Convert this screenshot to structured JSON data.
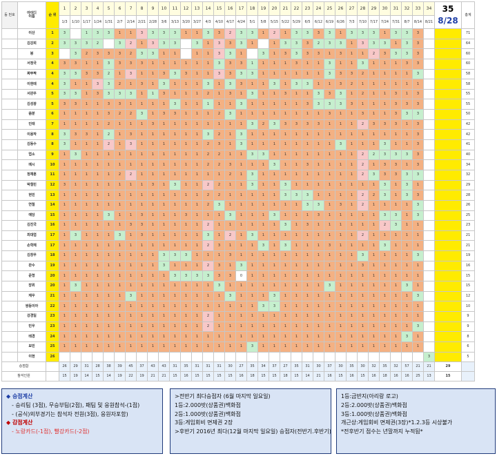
{
  "header": {
    "no_label": "등\n번호",
    "id_label": "아이디",
    "name_label": "이름",
    "rank_label": "순\n위",
    "big_number": "35",
    "big_date": "8/28",
    "total_label": "총계"
  },
  "weeks": [
    {
      "n": "1",
      "d": "1/3"
    },
    {
      "n": "2",
      "d": "1/10"
    },
    {
      "n": "3",
      "d": "1/17"
    },
    {
      "n": "4",
      "d": "1/24"
    },
    {
      "n": "5",
      "d": "1/31"
    },
    {
      "n": "6",
      "d": "2/7"
    },
    {
      "n": "7",
      "d": "2/14"
    },
    {
      "n": "8",
      "d": "2/21"
    },
    {
      "n": "9",
      "d": "2/28"
    },
    {
      "n": "10",
      "d": "3/6"
    },
    {
      "n": "11",
      "d": "3/13"
    },
    {
      "n": "12",
      "d": "3/20"
    },
    {
      "n": "13",
      "d": "3/27"
    },
    {
      "n": "14",
      "d": "4/3"
    },
    {
      "n": "15",
      "d": "4/10"
    },
    {
      "n": "16",
      "d": "4/17"
    },
    {
      "n": "17",
      "d": "4/24"
    },
    {
      "n": "18",
      "d": "5/1"
    },
    {
      "n": "19",
      "d": "5/8"
    },
    {
      "n": "20",
      "d": "5/15"
    },
    {
      "n": "21",
      "d": "5/22"
    },
    {
      "n": "22",
      "d": "5/29"
    },
    {
      "n": "23",
      "d": "6/5"
    },
    {
      "n": "24",
      "d": "6/12"
    },
    {
      "n": "25",
      "d": "6/19"
    },
    {
      "n": "26",
      "d": "6/26"
    },
    {
      "n": "27",
      "d": "7/3"
    },
    {
      "n": "28",
      "d": "7/10"
    },
    {
      "n": "29",
      "d": "7/17"
    },
    {
      "n": "30",
      "d": "7/24"
    },
    {
      "n": "31",
      "d": "7/31"
    },
    {
      "n": "32",
      "d": "8/7"
    },
    {
      "n": "33",
      "d": "8/14"
    },
    {
      "n": "34",
      "d": "8/21"
    }
  ],
  "colors": {
    "green": "#c6efce",
    "orange": "#f4b183",
    "pink": "#f8c8c8",
    "yellow": "#ffeb00",
    "blue": "#1f3fa6"
  },
  "players": [
    {
      "name": "이산",
      "rank": "1",
      "total": "71",
      "cells": "g3 _ g1 g3 g3 o1 o1 p3 g3 g3 g3 o1 o1 g3 o3 p2 g3 g3 o1 p2 o1 g3 g3 o3 g3 o1 g3 g3 g3 o1 g3 g3 o3 _"
    },
    {
      "name": "김강희",
      "rank": "2",
      "total": "64",
      "cells": "g3 g3 g3 g2 _ g3 p2 o1 p3 g3 g3 _ g3 o1 p3 o3 g3 o1 _ o1 g3 g3 o3 g2 g3 g3 o1 p3 g3 g3 o1 g3 o3 _"
    },
    {
      "name": "봉",
      "rank": "3",
      "total": "60",
      "cells": "_ g3 o2 o3 o3 o3 o2 g3 g3 o1 o1 _ o1 o1 p3 g3 o1 _ g3 o1 o3 g3 o3 o3 o1 o3 o1 o1 p2 o3 g3 g3 o3 _"
    },
    {
      "name": "서정국",
      "rank": "4",
      "total": "60",
      "cells": "o3 o3 o1 o1 g3 o3 o3 o3 o1 o1 o1 o1 o1 o1 g3 o3 o3 g1 o1 o1 o1 o3 o1 o1 g3 o1 o1 g3 o1 o1 o1 o3 o3 _"
    },
    {
      "name": "짜뚜짝",
      "rank": "4",
      "total": "58",
      "cells": "g3 g3 o3 o3 g2 o1 p3 o1 o1 o3 g3 o3 o1 o1 p3 o3 g3 g3 o1 o1 o1 o1 o1 o1 g3 o3 o3 o2 o1 o1 o1 o1 g3 _"
    },
    {
      "name": "이현태",
      "rank": "4",
      "total": "58",
      "cells": "g3 o1 o1 p3 g3 o2 o1 o3 o1 g3 o1 o1 o1 g3 o1 g3 o3 o1 o1 g3 o1 g3 g3 o1 o1 o3 o2 o1 o1 o1 o1 o1 o1 _"
    },
    {
      "name": "서완우",
      "rank": "5",
      "total": "55",
      "cells": "g3 g3 o1 o3 g3 g3 g3 o1 g1 o3 o1 o1 o1 o2 o1 o3 o1 g3 o1 o1 o3 o1 o1 g3 o3 g3 o1 o2 o1 o1 o3 o1 o3 _"
    },
    {
      "name": "김성광",
      "rank": "5",
      "total": "55",
      "cells": "o3 o3 o1 o1 o3 o3 o1 o1 o1 o1 g3 o1 o1 g1 o1 o1 g3 o1 o1 o1 o1 o1 o3 g3 g3 g3 o3 o1 o1 o1 o3 o3 o3 _"
    },
    {
      "name": "씀분",
      "rank": "6",
      "total": "50",
      "cells": "o1 o1 o1 o1 o3 o2 o2 g3 o1 o3 o3 o1 o1 o1 o2 g3 o1 o1 o1 o1 o1 o1 o1 o1 o3 o1 o1 o3 o1 o1 o3 g3 g3 _"
    },
    {
      "name": "인태",
      "rank": "7",
      "total": "42",
      "cells": "o1 o1 o1 o1 o2 o1 o1 o1 o3 o1 o1 o1 o1 o1 o1 o1 o1 g3 o2 g3 o3 o3 o3 o3 o1 o1 o1 p2 o3 o3 o3 o1 o3 _"
    },
    {
      "name": "이용작",
      "rank": "8",
      "total": "42",
      "cells": "g3 o3 o3 o1 g2 o1 o3 o1 o1 o1 o1 o1 o1 g3 o2 o1 g3 o1 o1 o1 o1 o1 o1 o1 o1 o1 o1 o1 o1 o1 o1 o1 o3 _"
    },
    {
      "name": "김동수",
      "rank": "8",
      "total": "41",
      "cells": "g3 o1 o1 o1 p2 o1 p3 o1 o1 o1 o1 o1 o1 o2 o3 o1 g3 o1 o1 o1 o1 o1 o1 o1 o1 g3 o1 o1 o1 g3 o1 o1 o3 _"
    },
    {
      "name": "엽소",
      "rank": "9",
      "total": "40",
      "cells": "o1 g3 o1 o1 o1 o1 o1 o1 o1 o1 o1 o1 o1 o2 o2 o1 o1 g3 g3 o1 o1 o1 o1 o1 o1 o1 o1 p2 g2 g3 g3 g3 o3 _"
    },
    {
      "name": "메시",
      "rank": "10",
      "total": "34",
      "cells": "o1 o1 o1 o1 o1 o1 o1 o1 o1 o1 o1 o1 o1 o2 o2 o3 o1 o1 o1 g3 o1 o1 o3 o1 o1 o1 o1 p2 o1 o3 o3 o1 o3 _"
    },
    {
      "name": "정재훈",
      "rank": "11",
      "total": "32",
      "cells": "o1 o1 o1 o1 o1 o2 p2 o1 o1 o1 o1 o1 o1 o1 o1 o2 o1 g3 o1 o1 o1 o1 o1 o1 o1 o1 o1 p2 g3 o3 o3 g3 g3 _"
    },
    {
      "name": "박철민",
      "rank": "12",
      "total": "29",
      "cells": "o3 o1 o1 o1 o1 o1 o1 o1 o3 o1 g3 o1 o1 p2 o2 o1 o1 g3 o1 o1 g3 o1 o1 o1 o1 o1 o1 o1 o1 g3 o1 g3 o1 _"
    },
    {
      "name": "현민",
      "rank": "13",
      "total": "28",
      "cells": "o1 o1 o1 o1 o1 o1 o1 o1 o1 o1 o1 o1 o1 o2 o2 o1 o1 o1 o1 o1 g3 g3 g3 o1 o1 o1 o1 p2 o2 g3 o1 g3 o3 _"
    },
    {
      "name": "연철",
      "rank": "14",
      "total": "26",
      "cells": "o1 o1 o1 o1 o1 o1 o1 o1 o1 o1 o1 o1 o1 o2 g3 o1 o1 o1 o1 o1 o1 o1 g3 g3 o1 o3 o1 p2 o1 o1 o1 o1 g3 _"
    },
    {
      "name": "예당",
      "rank": "15",
      "total": "25",
      "cells": "o1 o1 o1 o1 g3 o1 o1 o3 o1 o1 o1 o3 o1 o1 o1 g3 o1 o1 o1 g3 o1 o1 o1 o3 o1 o1 o1 o1 o1 g3 g3 o1 g3 _"
    },
    {
      "name": "김진국",
      "rank": "16",
      "total": "23",
      "cells": "o1 o1 o1 o1 o1 o1 o3 o3 o1 o1 o1 o1 o1 p2 o1 o1 o1 o1 o1 o1 g3 o1 o3 o1 o1 o1 o1 o1 o1 p2 g3 o1 o1 _"
    },
    {
      "name": "최대엽",
      "rank": "17",
      "total": "21",
      "cells": "o1 g3 o1 o1 o1 g3 o1 o3 o1 o1 o1 o1 o1 g3 o1 p2 o1 g3 o1 o1 o1 o1 o1 o1 o1 o1 o1 p2 o1 o1 o1 o1 o1 _"
    },
    {
      "name": "손학재",
      "rank": "17",
      "total": "21",
      "cells": "o1 o1 o1 o1 o1 o1 o1 o1 o1 o1 o1 o1 o1 p2 o3 o1 o1 o1 g3 o1 g3 o1 o1 o1 o3 o1 o1 o1 o1 g3 o1 o1 o1 _"
    },
    {
      "name": "김창우",
      "rank": "18",
      "total": "19",
      "cells": "o1 o1 o1 o1 o1 o1 o1 o1 o1 g3 g3 g3 o1 o1 o1 o3 o1 o1 o1 o1 o1 o1 o1 o1 o1 o1 o1 g3 o1 o1 o1 o1 g3 _"
    },
    {
      "name": "완수",
      "rank": "19",
      "total": "16",
      "cells": "o1 o1 o1 o1 o1 o1 o1 o1 o1 g3 o1 o1 o1 p2 o3 o1 g3 o1 o1 o1 o1 o1 o1 o1 o1 o1 o1 o3 o1 o1 o1 o1 o1 _"
    },
    {
      "name": "준형",
      "rank": "20",
      "total": "15",
      "cells": "o1 o1 o1 o1 o1 o1 o1 o1 o1 o1 g3 g3 g3 g3 o3 o3 _0 o1 o1 o1 o1 o1 o1 o1 o1 o1 o1 o1 o1 o1 o1 o1 o1 _"
    },
    {
      "name": "장위",
      "rank": "20",
      "total": "15",
      "cells": "o1 g3 o1 o1 o1 o1 o1 o1 o1 o1 o1 o1 o1 o1 g3 o1 o1 o1 o1 o1 o1 o1 o1 o1 g3 o1 o1 o1 o1 o1 o1 g3 o1 _"
    },
    {
      "name": "재우",
      "rank": "21",
      "total": "12",
      "cells": "o1 o1 o1 o1 o1 o1 g3 o1 o1 o1 o1 o1 o1 o1 o1 g3 o1 o1 o1 g3 o1 o1 o1 o1 o1 o1 o1 o1 o1 o1 o1 o1 g3 _"
    },
    {
      "name": "쌍둥이아",
      "rank": "22",
      "total": "10",
      "cells": "o1 o1 o1 o1 o1 o2 o1 o1 o1 o1 o1 o1 o1 o1 o1 o1 o1 o1 g3 g3 o1 o1 o1 o1 o1 o1 o1 o1 o1 o1 o1 o1 o1 _"
    },
    {
      "name": "강경일",
      "rank": "23",
      "total": "9",
      "cells": "o1 o1 o1 o1 o1 o1 o1 o1 o1 o1 o1 o1 o1 p2 o1 o1 o1 o1 o1 o1 o1 o1 o1 o1 o1 o1 o1 o1 o1 o1 o1 o1 o1 _"
    },
    {
      "name": "민우",
      "rank": "23",
      "total": "9",
      "cells": "o1 o1 o1 o1 o1 o1 o1 o1 o1 o1 o1 o1 o1 p2 o1 o1 o1 o1 o1 o1 o1 o1 o1 o1 o1 o1 o1 o1 o1 o1 o1 o1 g3 _"
    },
    {
      "name": "태경",
      "rank": "24",
      "total": "8",
      "cells": "o1 o1 o1 o1 o1 o1 o1 o1 o1 o1 o1 o1 o1 o1 o1 o1 o1 o1 o1 o1 o1 o1 o1 o1 o1 o1 o1 o1 o1 o1 o1 g3 o1 _"
    },
    {
      "name": "보민",
      "rank": "25",
      "total": "6",
      "cells": "o1 o1 o1 o1 o1 o1 o1 o1 o1 o1 o1 o1 o1 o1 o1 o1 o1 g3 o1 o1 o1 o1 o1 o1 o1 o1 o1 o1 o1 o1 o1 o1 o1 _"
    },
    {
      "name": "이현",
      "rank": "26",
      "total": "5",
      "cells": "_ _ _ _ _ _ _ _ _ _ _ _ _ _ _ _ _ _ _ _ _ _ _ _ _ _ _ _ _ _ _ _ _ g3"
    }
  ],
  "summary": {
    "score_label": "승점합",
    "attend_label": "참석인원",
    "score_values": [
      "26",
      "29",
      "31",
      "28",
      "38",
      "39",
      "45",
      "37",
      "43",
      "43",
      "31",
      "35",
      "31",
      "31",
      "31",
      "30",
      "27",
      "35",
      "34",
      "37",
      "27",
      "35",
      "31",
      "30",
      "37",
      "30",
      "35",
      "30",
      "32",
      "35",
      "32",
      "57",
      "21",
      "21"
    ],
    "attend_values": [
      "15",
      "19",
      "14",
      "15",
      "14",
      "19",
      "22",
      "19",
      "21",
      "21",
      "15",
      "16",
      "15",
      "15",
      "15",
      "15",
      "16",
      "18",
      "15",
      "15",
      "18",
      "15",
      "14",
      "21",
      "16",
      "15",
      "16",
      "15",
      "16",
      "18",
      "16",
      "16",
      "25",
      "13"
    ],
    "score_big": "29",
    "attend_big": "15"
  },
  "box1": {
    "l1": "◆ 승점계산",
    "l2": "- 승리팀 (3점), 무승부팀(2점), 패팀 및 응원참석-(1점)",
    "l3": "- (공식)외부경기는 참석자 전원(3점), 응원자포함)",
    "l4": "◆ 감점계산",
    "l5": "- 노랑카드(-1점), 빨강카드(-2점)"
  },
  "box2": {
    "l1": ">전반기 최다승점자 (6월 마지막 일요일)",
    "l2": "1등:2.000밧(상품권)백화점",
    "l3": "2등:1.000밧(상품권)백화점",
    "l4": "3등:게임회비 면제권 2장",
    "l5": ">후반기 2016년 최다(12월 마지막 일요일) 승점자(전반기.후반기)"
  },
  "box3": {
    "l1": "1등:금반지(아리랑 로고)",
    "l2": "2등:2.000밧(상품권)백화점",
    "l3": "3등:1.000밧(상품권)백화점",
    "l4": "개근상:게임회비 면제권(3장)*1.2.3등 시상불가",
    "l5": "*전후반기 점수는 년말까지 누적됨*"
  }
}
